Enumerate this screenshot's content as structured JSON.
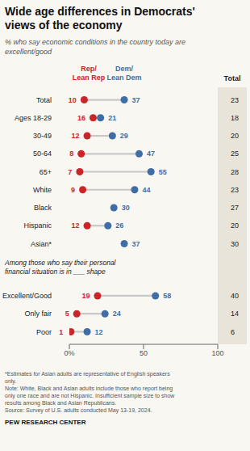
{
  "chart_data": {
    "type": "dumbbell",
    "orientation": "horizontal",
    "title": "Wide age differences in Democrats'\nviews of the economy",
    "subtitle": "% who say economic conditions in the country today are\nexcellent/good",
    "categories": [
      "Total",
      "Ages 18-29",
      "30-49",
      "50-64",
      "65+",
      "White",
      "Black",
      "Hispanic",
      "Asian*",
      "Excellent/Good",
      "Only fair",
      "Poor"
    ],
    "series": [
      {
        "name": "Rep/\nLean Rep",
        "color": "#cc2529",
        "values": [
          10,
          16,
          12,
          8,
          7,
          9,
          null,
          12,
          null,
          19,
          5,
          1
        ]
      },
      {
        "name": "Dem/\nLean Dem",
        "color": "#3f6ea6",
        "values": [
          37,
          21,
          29,
          47,
          55,
          44,
          30,
          26,
          37,
          58,
          24,
          12
        ]
      }
    ],
    "total": {
      "name": "Total",
      "values": [
        23,
        18,
        20,
        25,
        28,
        23,
        27,
        20,
        30,
        40,
        14,
        6
      ]
    },
    "annotations": [
      {
        "text": "Among those who say their personal\nfinancial situation is in ___ shape",
        "before": "Excellent/Good"
      }
    ],
    "xlim": [
      0,
      100
    ],
    "xticks": [
      {
        "value": 0,
        "label": "0%"
      },
      50,
      100
    ],
    "data_labels": true,
    "footnote": "*Estimates for Asian adults are representative of English speakers\nonly.\nNote: White, Black and Asian adults include those who report being\nonly one race and are not Hispanic. Insufficient sample size to show\nresults among Black and Asian Republicans.\nSource: Survey of U.S. adults conducted May 13-19, 2024.",
    "source": "PEW RESEARCH CENTER"
  }
}
